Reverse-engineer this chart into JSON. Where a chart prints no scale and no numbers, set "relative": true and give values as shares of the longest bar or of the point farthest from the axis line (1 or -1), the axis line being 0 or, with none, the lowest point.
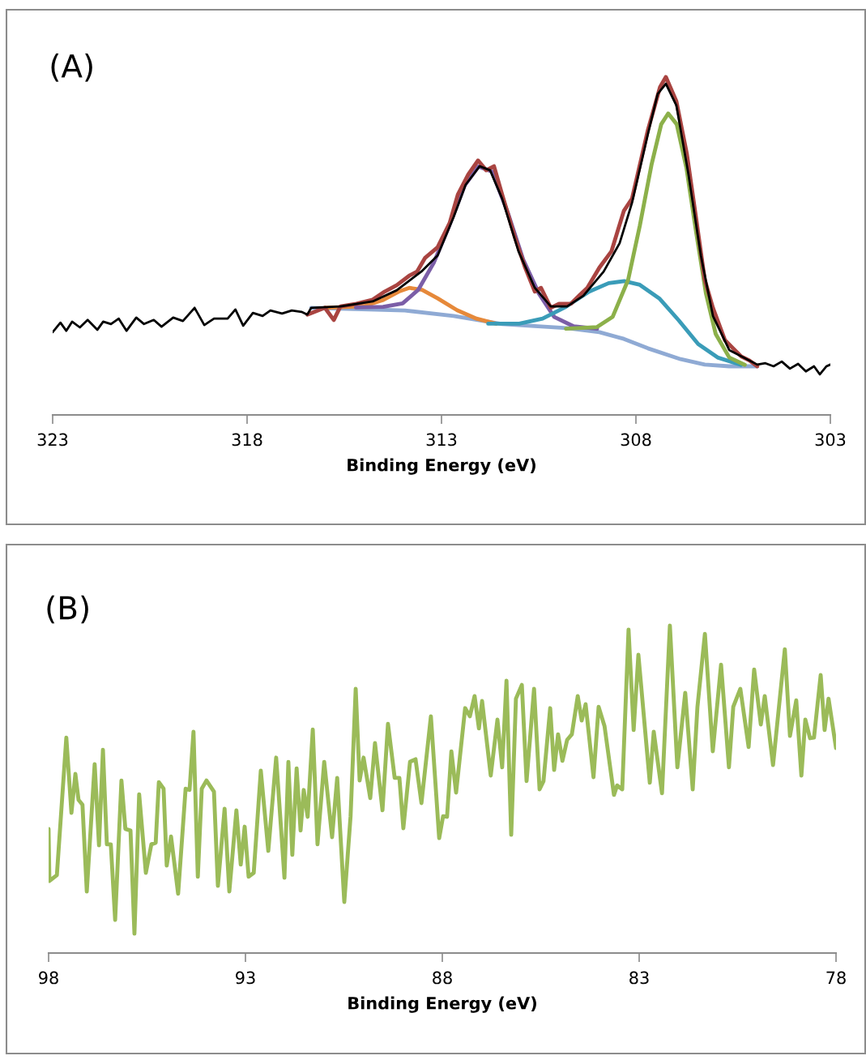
{
  "chart_data": [
    {
      "type": "line",
      "title": "(A)",
      "xlabel": "Binding Energy (eV)",
      "relative": true,
      "xlim": [
        323,
        303
      ],
      "xticks": [
        323,
        318,
        313,
        308,
        303
      ],
      "series": [
        {
          "color": "#8faad4",
          "x": [
            316.35,
            313.94,
            312.69,
            311.44,
            309.77,
            308.94,
            308.31,
            307.69,
            306.85,
            306.23,
            305.6,
            304.88
          ],
          "values": [
            0.317,
            0.309,
            0.293,
            0.269,
            0.257,
            0.245,
            0.225,
            0.197,
            0.165,
            0.149,
            0.144,
            0.144
          ]
        },
        {
          "color": "#e6893a",
          "x": [
            316.0,
            315.0,
            314.5,
            314.1,
            313.83,
            313.5,
            313.1,
            312.6,
            312.1,
            311.6
          ],
          "values": [
            0.317,
            0.322,
            0.34,
            0.365,
            0.376,
            0.37,
            0.345,
            0.31,
            0.285,
            0.27
          ]
        },
        {
          "color": "#7b5ea7",
          "x": [
            315.2,
            314.5,
            314.0,
            313.6,
            313.2,
            312.8,
            312.4,
            312.05,
            311.7,
            311.3,
            310.9,
            310.5,
            310.1,
            309.6,
            309.0
          ],
          "values": [
            0.318,
            0.32,
            0.33,
            0.37,
            0.45,
            0.56,
            0.68,
            0.735,
            0.72,
            0.6,
            0.46,
            0.36,
            0.29,
            0.262,
            0.255
          ]
        },
        {
          "color": "#3a9cb8",
          "x": [
            311.8,
            311.0,
            310.4,
            309.8,
            309.2,
            308.7,
            308.3,
            307.9,
            307.4,
            306.9,
            306.4,
            305.9,
            305.3
          ],
          "values": [
            0.27,
            0.27,
            0.285,
            0.32,
            0.365,
            0.39,
            0.396,
            0.385,
            0.345,
            0.28,
            0.21,
            0.17,
            0.148
          ]
        },
        {
          "color": "#8cb04a",
          "x": [
            309.8,
            309.0,
            308.6,
            308.2,
            307.9,
            307.6,
            307.35,
            307.17,
            306.95,
            306.7,
            306.45,
            306.2,
            305.95,
            305.6,
            305.2
          ],
          "values": [
            0.255,
            0.26,
            0.29,
            0.4,
            0.56,
            0.74,
            0.86,
            0.892,
            0.86,
            0.73,
            0.54,
            0.36,
            0.24,
            0.17,
            0.148
          ]
        },
        {
          "color": "#a94441",
          "x": [
            316.45,
            316.0,
            315.77,
            315.6,
            315.19,
            314.77,
            314.46,
            314.15,
            313.83,
            313.63,
            313.42,
            313.1,
            312.79,
            312.58,
            312.31,
            312.06,
            311.85,
            311.65,
            311.44,
            311.13,
            310.85,
            310.6,
            310.44,
            310.19,
            309.98,
            309.67,
            309.46,
            309.25,
            308.94,
            308.63,
            308.31,
            308.1,
            307.69,
            307.38,
            307.23,
            306.96,
            306.69,
            306.48,
            306.23,
            306.02,
            305.71,
            305.5,
            305.29,
            305.08,
            304.88
          ],
          "values": [
            0.297,
            0.317,
            0.281,
            0.321,
            0.329,
            0.341,
            0.365,
            0.384,
            0.412,
            0.424,
            0.465,
            0.496,
            0.568,
            0.652,
            0.712,
            0.753,
            0.724,
            0.736,
            0.652,
            0.532,
            0.436,
            0.365,
            0.376,
            0.317,
            0.329,
            0.329,
            0.353,
            0.376,
            0.436,
            0.484,
            0.604,
            0.64,
            0.844,
            0.97,
            1.0,
            0.928,
            0.772,
            0.604,
            0.4,
            0.317,
            0.221,
            0.197,
            0.173,
            0.161,
            0.144
          ]
        },
        {
          "color": "#000000",
          "x": [
            323.0,
            322.8,
            322.65,
            322.5,
            322.3,
            322.1,
            321.85,
            321.7,
            321.5,
            321.3,
            321.1,
            320.85,
            320.65,
            320.4,
            320.2,
            319.9,
            319.65,
            319.35,
            319.1,
            318.85,
            318.5,
            318.3,
            318.1,
            317.85,
            317.6,
            317.4,
            317.1,
            316.85,
            316.6,
            316.45,
            316.35,
            315.6,
            314.77,
            314.15,
            313.52,
            313.1,
            312.69,
            312.38,
            312.02,
            311.75,
            311.44,
            311.02,
            310.6,
            310.19,
            309.77,
            309.35,
            308.83,
            308.42,
            308.1,
            307.69,
            307.44,
            307.23,
            306.96,
            306.65,
            306.33,
            306.02,
            305.6,
            304.88,
            304.67,
            304.46,
            304.25,
            304.04,
            303.83,
            303.63,
            303.42,
            303.27,
            303.1,
            303.0
          ],
          "values": [
            0.245,
            0.273,
            0.249,
            0.276,
            0.259,
            0.281,
            0.252,
            0.276,
            0.269,
            0.285,
            0.249,
            0.288,
            0.269,
            0.281,
            0.261,
            0.288,
            0.278,
            0.317,
            0.266,
            0.285,
            0.285,
            0.312,
            0.264,
            0.302,
            0.293,
            0.309,
            0.3,
            0.309,
            0.305,
            0.297,
            0.317,
            0.321,
            0.336,
            0.369,
            0.424,
            0.472,
            0.585,
            0.681,
            0.736,
            0.724,
            0.64,
            0.484,
            0.376,
            0.321,
            0.321,
            0.353,
            0.424,
            0.508,
            0.628,
            0.832,
            0.95,
            0.98,
            0.916,
            0.712,
            0.472,
            0.293,
            0.192,
            0.149,
            0.153,
            0.144,
            0.158,
            0.137,
            0.151,
            0.129,
            0.144,
            0.12,
            0.144,
            0.149
          ]
        }
      ]
    },
    {
      "type": "line",
      "title": "(B)",
      "xlabel": "Binding Energy (eV)",
      "relative": true,
      "xlim": [
        98,
        78
      ],
      "xticks": [
        98,
        93,
        88,
        83,
        78
      ],
      "series": [
        {
          "color": "#9bbb59",
          "x": [
            98.0,
            97.98,
            97.79,
            97.55,
            97.42,
            97.32,
            97.24,
            97.14,
            97.03,
            96.83,
            96.72,
            96.62,
            96.52,
            96.42,
            96.31,
            96.15,
            96.05,
            95.92,
            95.82,
            95.7,
            95.53,
            95.39,
            95.28,
            95.2,
            95.08,
            95.0,
            94.89,
            94.71,
            94.52,
            94.42,
            94.32,
            94.21,
            94.11,
            93.99,
            93.8,
            93.7,
            93.53,
            93.41,
            93.23,
            93.12,
            93.02,
            92.92,
            92.79,
            92.61,
            92.42,
            92.22,
            92.01,
            91.91,
            91.81,
            91.7,
            91.6,
            91.52,
            91.42,
            91.29,
            91.17,
            91.0,
            90.8,
            90.67,
            90.49,
            90.33,
            90.2,
            90.1,
            90.0,
            89.83,
            89.71,
            89.52,
            89.38,
            89.21,
            89.09,
            88.99,
            88.82,
            88.68,
            88.53,
            88.29,
            88.08,
            87.98,
            87.88,
            87.77,
            87.65,
            87.42,
            87.3,
            87.18,
            87.07,
            86.99,
            86.77,
            86.6,
            86.48,
            86.37,
            86.25,
            86.13,
            85.98,
            85.86,
            85.67,
            85.53,
            85.43,
            85.26,
            85.16,
            85.06,
            84.95,
            84.83,
            84.71,
            84.56,
            84.46,
            84.36,
            84.16,
            84.03,
            83.88,
            83.64,
            83.56,
            83.43,
            83.27,
            83.14,
            83.02,
            82.73,
            82.63,
            82.42,
            82.22,
            82.03,
            81.83,
            81.64,
            81.52,
            81.33,
            81.13,
            80.92,
            80.72,
            80.61,
            80.43,
            80.22,
            80.08,
            79.91,
            79.81,
            79.6,
            79.3,
            79.17,
            79.01,
            78.88,
            78.78,
            78.66,
            78.56,
            78.39,
            78.29,
            78.19,
            78.0
          ],
          "values": [
            0.379,
            0.22,
            0.238,
            0.658,
            0.428,
            0.547,
            0.468,
            0.453,
            0.188,
            0.577,
            0.329,
            0.621,
            0.332,
            0.332,
            0.101,
            0.527,
            0.379,
            0.374,
            0.059,
            0.485,
            0.245,
            0.332,
            0.337,
            0.522,
            0.502,
            0.267,
            0.356,
            0.181,
            0.502,
            0.498,
            0.676,
            0.233,
            0.502,
            0.527,
            0.493,
            0.205,
            0.441,
            0.188,
            0.436,
            0.27,
            0.386,
            0.233,
            0.245,
            0.557,
            0.312,
            0.597,
            0.23,
            0.584,
            0.3,
            0.564,
            0.374,
            0.498,
            0.416,
            0.683,
            0.332,
            0.584,
            0.354,
            0.535,
            0.156,
            0.418,
            0.807,
            0.527,
            0.597,
            0.473,
            0.641,
            0.436,
            0.7,
            0.535,
            0.535,
            0.381,
            0.584,
            0.592,
            0.458,
            0.723,
            0.351,
            0.418,
            0.416,
            0.616,
            0.49,
            0.748,
            0.723,
            0.785,
            0.686,
            0.77,
            0.542,
            0.713,
            0.567,
            0.832,
            0.361,
            0.777,
            0.819,
            0.525,
            0.807,
            0.5,
            0.525,
            0.748,
            0.559,
            0.668,
            0.587,
            0.651,
            0.668,
            0.785,
            0.71,
            0.76,
            0.537,
            0.752,
            0.693,
            0.483,
            0.512,
            0.5,
            0.988,
            0.681,
            0.911,
            0.52,
            0.676,
            0.488,
            1.0,
            0.567,
            0.795,
            0.5,
            0.752,
            0.975,
            0.616,
            0.881,
            0.567,
            0.752,
            0.807,
            0.629,
            0.866,
            0.698,
            0.785,
            0.574,
            0.928,
            0.663,
            0.772,
            0.542,
            0.713,
            0.656,
            0.658,
            0.849,
            0.681,
            0.777,
            0.626
          ]
        }
      ]
    }
  ]
}
